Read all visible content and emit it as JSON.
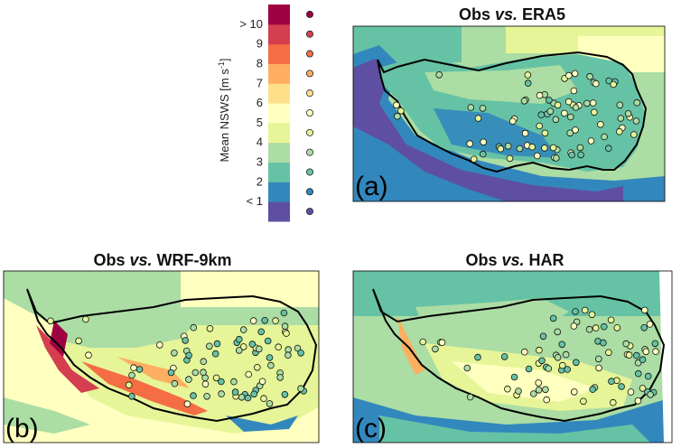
{
  "colorbar": {
    "label": "Mean NSWS [m s",
    "label_sup": "-1",
    "label_close": "]",
    "ticks": [
      "< 1",
      "2",
      "3",
      "4",
      "5",
      "6",
      "7",
      "8",
      "9",
      "> 10"
    ],
    "colors": [
      "#5e4fa2",
      "#3288bd",
      "#66c2a5",
      "#abdda4",
      "#e6f598",
      "#ffffbf",
      "#fee08b",
      "#fdae61",
      "#f46d43",
      "#d53e4f",
      "#9e0142"
    ]
  },
  "panels": [
    {
      "title_prefix": "Obs ",
      "title_vs": "vs.",
      "title_suffix": " ERA5",
      "letter": "(a)"
    },
    {
      "title_prefix": "Obs ",
      "title_vs": "vs.",
      "title_suffix": " WRF-9km",
      "letter": "(b)"
    },
    {
      "title_prefix": "Obs ",
      "title_vs": "vs.",
      "title_suffix": " HAR",
      "letter": "(c)"
    }
  ]
}
